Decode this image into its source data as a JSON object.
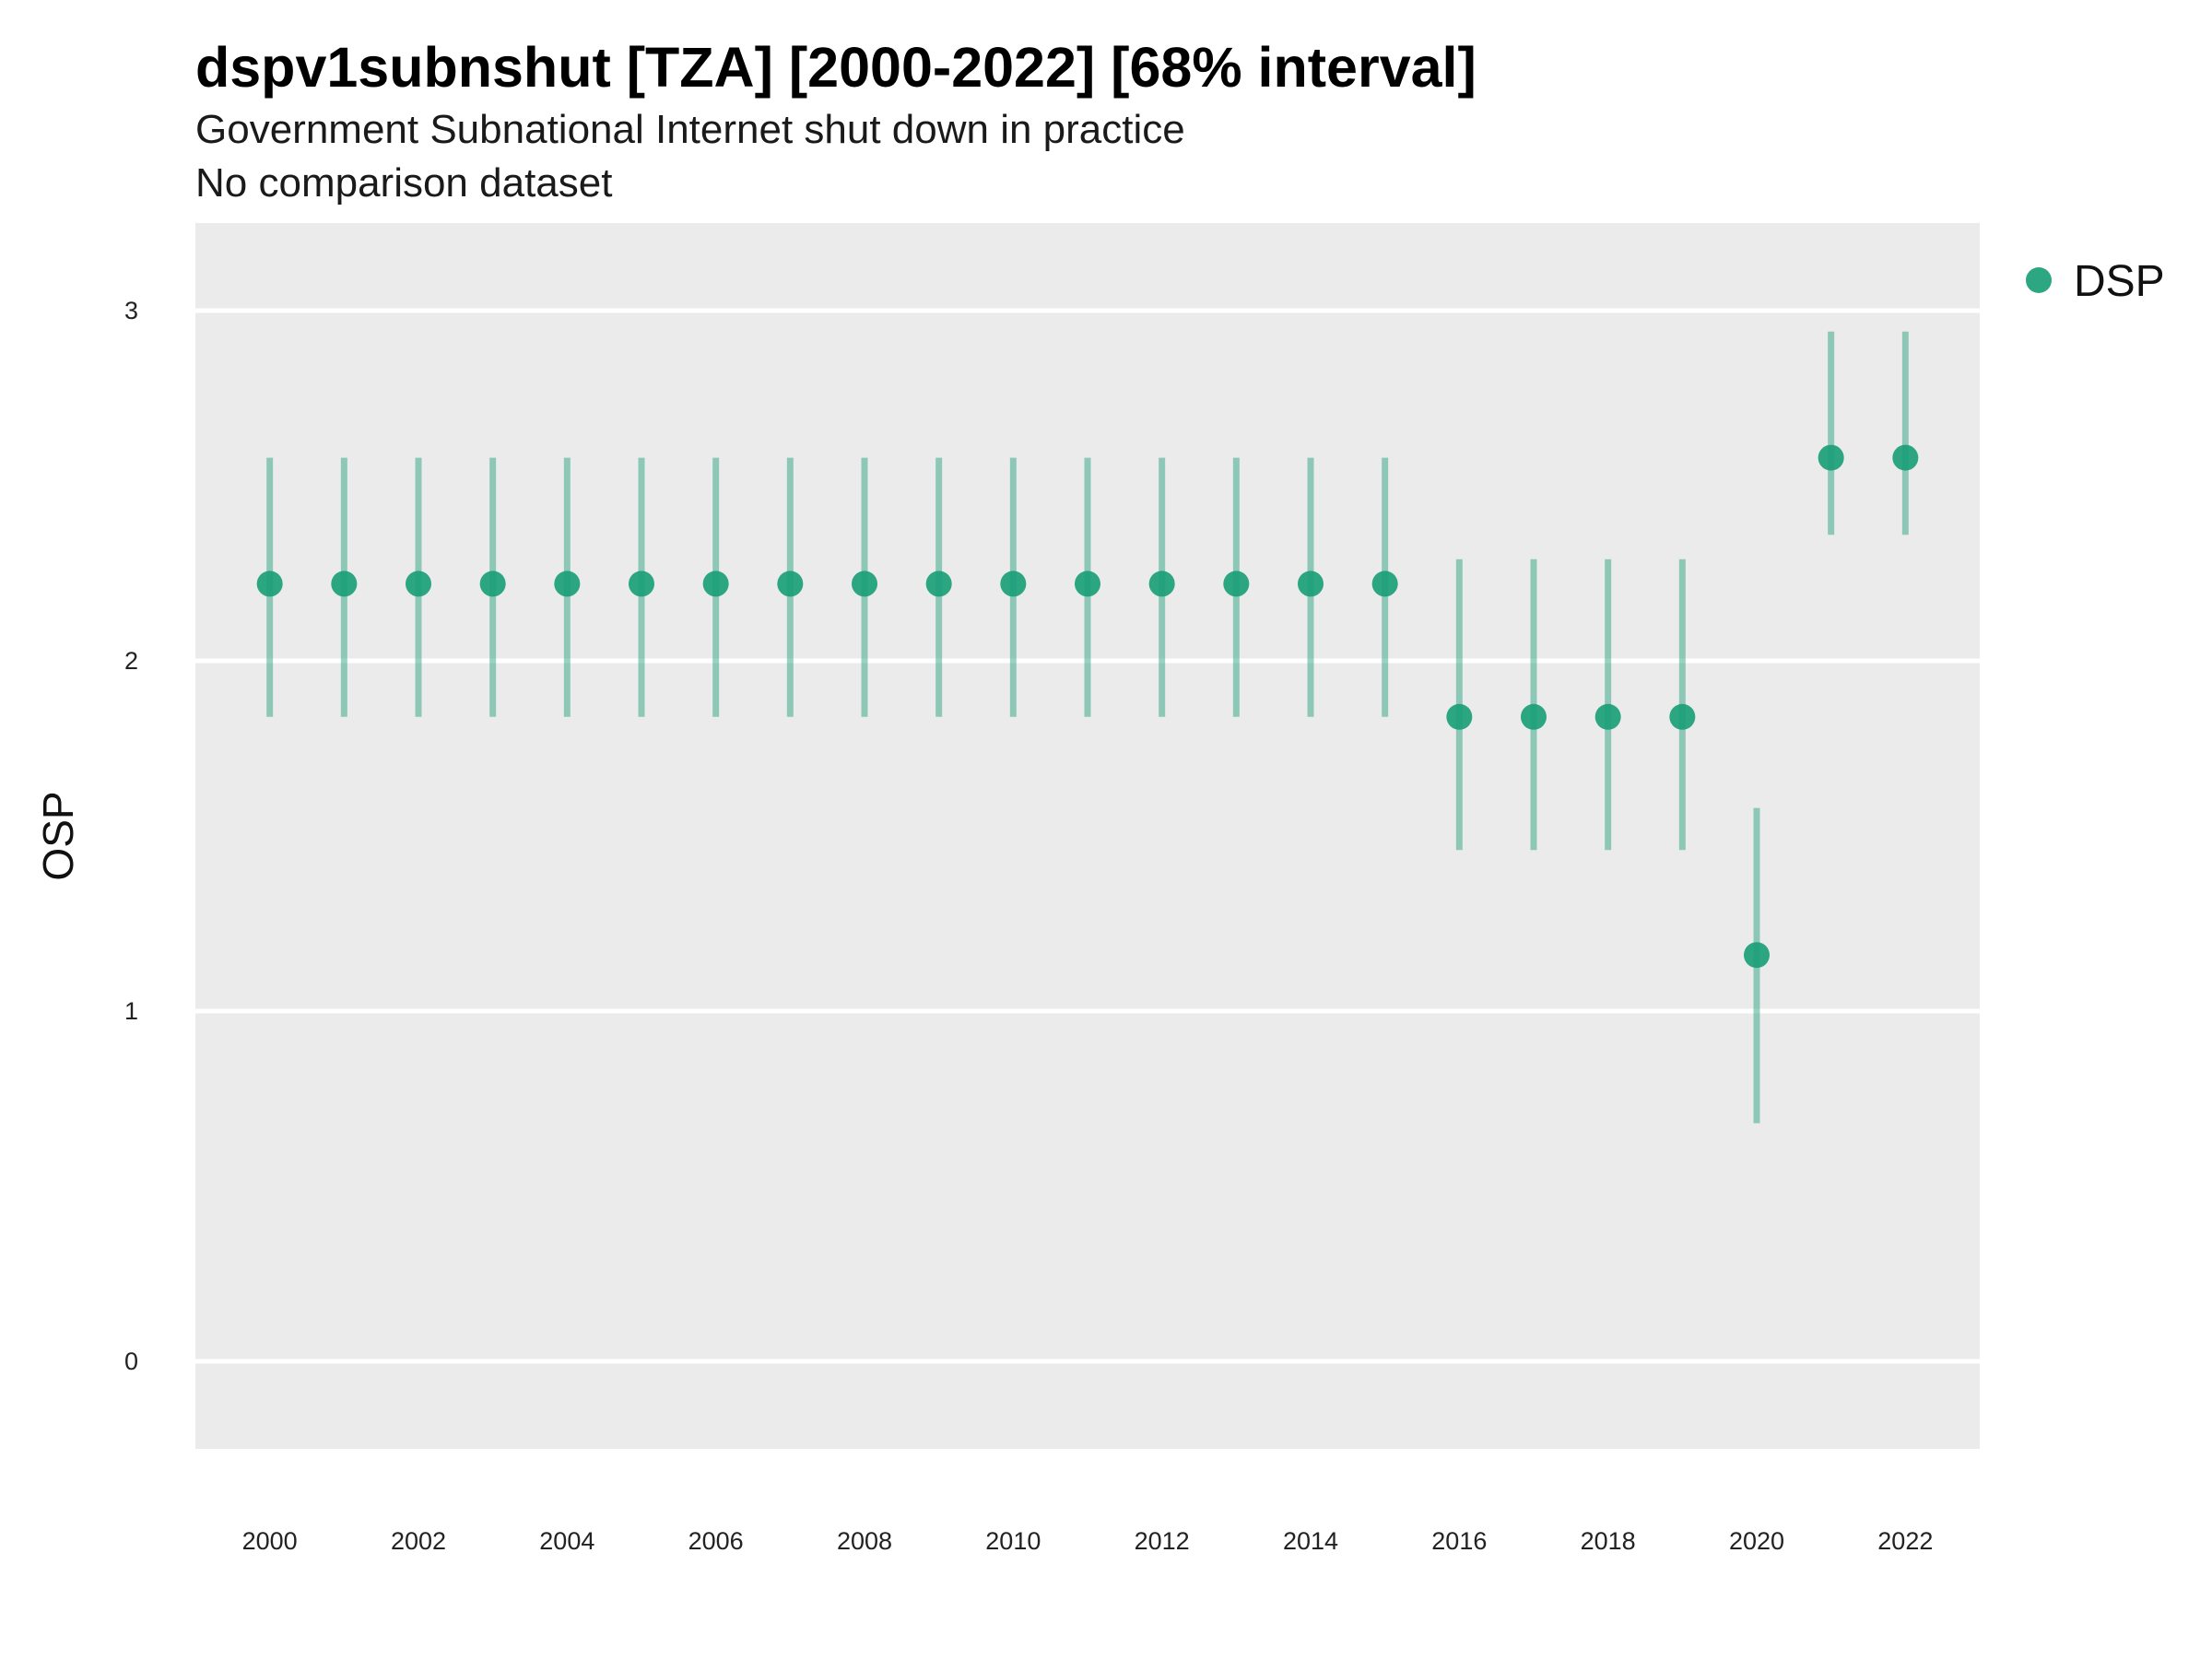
{
  "chart_data": {
    "type": "scatter",
    "title": "dspv1subnshut [TZA] [2000-2022] [68% interval]",
    "subtitle_lines": [
      "Government Subnational Internet shut down in practice",
      "No comparison dataset"
    ],
    "xlabel": "",
    "ylabel": "OSP",
    "x_ticks": [
      "2000",
      "2002",
      "2004",
      "2006",
      "2008",
      "2010",
      "2012",
      "2014",
      "2016",
      "2018",
      "2020",
      "2022"
    ],
    "y_ticks": [
      "0",
      "1",
      "2",
      "3"
    ],
    "xlim": [
      1999,
      2023
    ],
    "ylim": [
      -0.25,
      3.25
    ],
    "grid": true,
    "legend_position": "top-right",
    "series": [
      {
        "name": "DSP",
        "color": "#1b9e77",
        "x": [
          2000,
          2001,
          2002,
          2003,
          2004,
          2005,
          2006,
          2007,
          2008,
          2009,
          2010,
          2011,
          2012,
          2013,
          2014,
          2015,
          2016,
          2017,
          2018,
          2019,
          2020,
          2021,
          2022
        ],
        "y": [
          2.22,
          2.22,
          2.22,
          2.22,
          2.22,
          2.22,
          2.22,
          2.22,
          2.22,
          2.22,
          2.22,
          2.22,
          2.22,
          2.22,
          2.22,
          2.22,
          1.84,
          1.84,
          1.84,
          1.84,
          1.16,
          2.58,
          2.58
        ],
        "lower": [
          1.84,
          1.84,
          1.84,
          1.84,
          1.84,
          1.84,
          1.84,
          1.84,
          1.84,
          1.84,
          1.84,
          1.84,
          1.84,
          1.84,
          1.84,
          1.84,
          1.46,
          1.46,
          1.46,
          1.46,
          0.68,
          2.36,
          2.36
        ],
        "upper": [
          2.58,
          2.58,
          2.58,
          2.58,
          2.58,
          2.58,
          2.58,
          2.58,
          2.58,
          2.58,
          2.58,
          2.58,
          2.58,
          2.58,
          2.58,
          2.58,
          2.29,
          2.29,
          2.29,
          2.29,
          1.58,
          2.94,
          2.94
        ]
      }
    ]
  }
}
